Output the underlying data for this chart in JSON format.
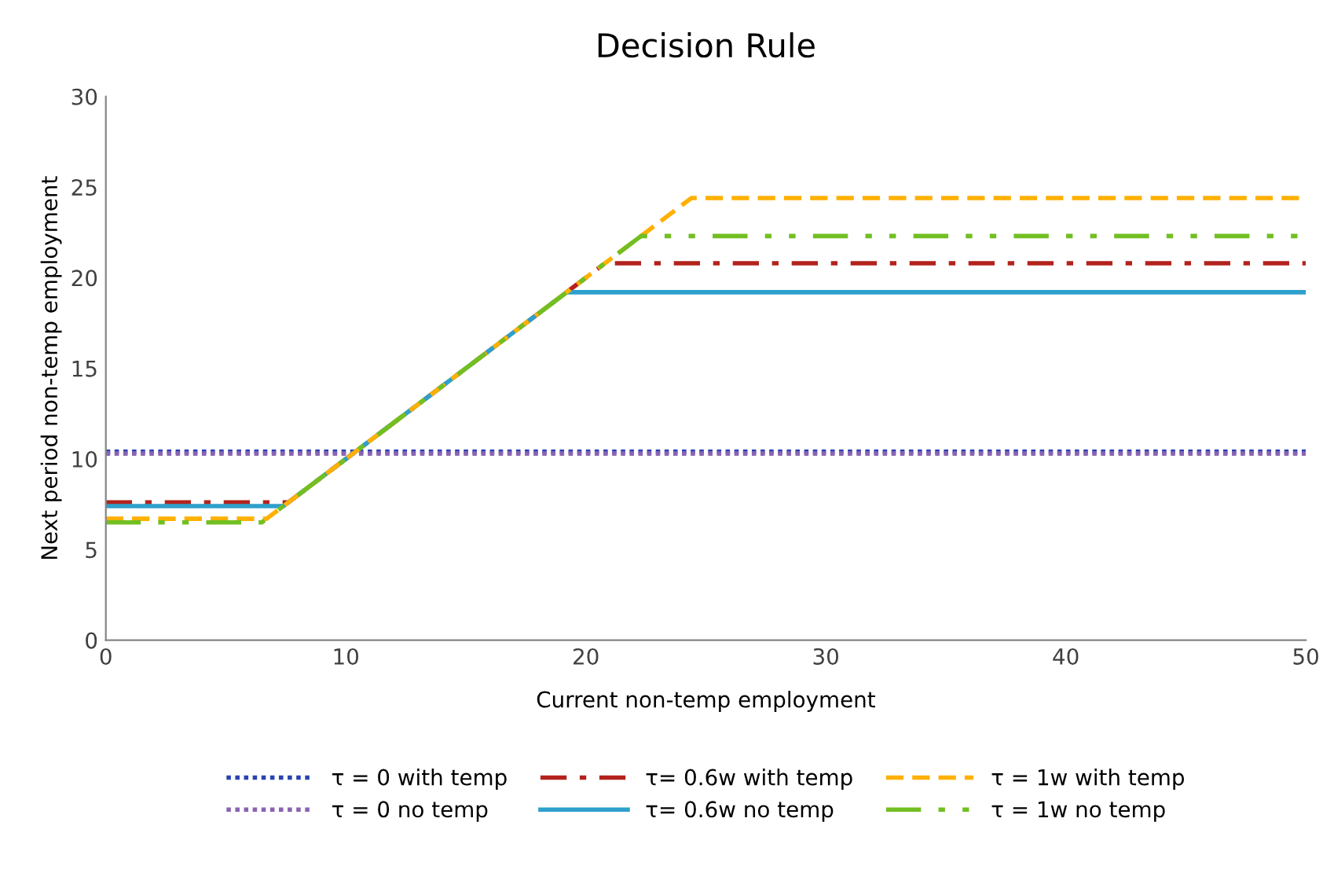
{
  "chart_data": {
    "type": "line",
    "title": "Decision Rule",
    "xlabel": "Current non-temp employment",
    "ylabel": "Next period non-temp employment",
    "xlim": [
      0,
      50
    ],
    "xticks": [
      0,
      10,
      20,
      30,
      40,
      50
    ],
    "ylim": [
      0,
      30
    ],
    "yticks": [
      0,
      5,
      10,
      15,
      20,
      25,
      30
    ],
    "grid": false,
    "legend": "bottom",
    "marker": "none",
    "series": [
      {
        "name": "τ = 0 with temp",
        "color": "#2a43b0",
        "line_style": "dotted",
        "x": [
          0,
          50
        ],
        "values": [
          10.4,
          10.4
        ]
      },
      {
        "name": "τ = 0 no temp",
        "color": "#8a64b4",
        "line_style": "dotted",
        "x": [
          0,
          50
        ],
        "values": [
          10.3,
          10.3
        ]
      },
      {
        "name": "τ= 0.6w with temp",
        "color": "#b3221c",
        "line_style": "dashdot",
        "x": [
          0,
          7.6,
          20.8,
          50
        ],
        "values": [
          7.6,
          7.6,
          20.8,
          20.8
        ]
      },
      {
        "name": "τ= 0.6w no temp",
        "color": "#2ea0cc",
        "line_style": "solid",
        "x": [
          0,
          7.4,
          19.2,
          50
        ],
        "values": [
          7.4,
          7.4,
          19.2,
          19.2
        ]
      },
      {
        "name": "τ = 1w with temp",
        "color": "#ffb000",
        "line_style": "dashed",
        "x": [
          0,
          6.7,
          24.4,
          50
        ],
        "values": [
          6.7,
          6.7,
          24.4,
          24.4
        ]
      },
      {
        "name": "τ = 1w no temp",
        "color": "#72bf22",
        "line_style": "dashdotdot",
        "x": [
          0,
          6.5,
          22.3,
          50
        ],
        "values": [
          6.5,
          6.5,
          22.3,
          22.3
        ]
      }
    ]
  }
}
